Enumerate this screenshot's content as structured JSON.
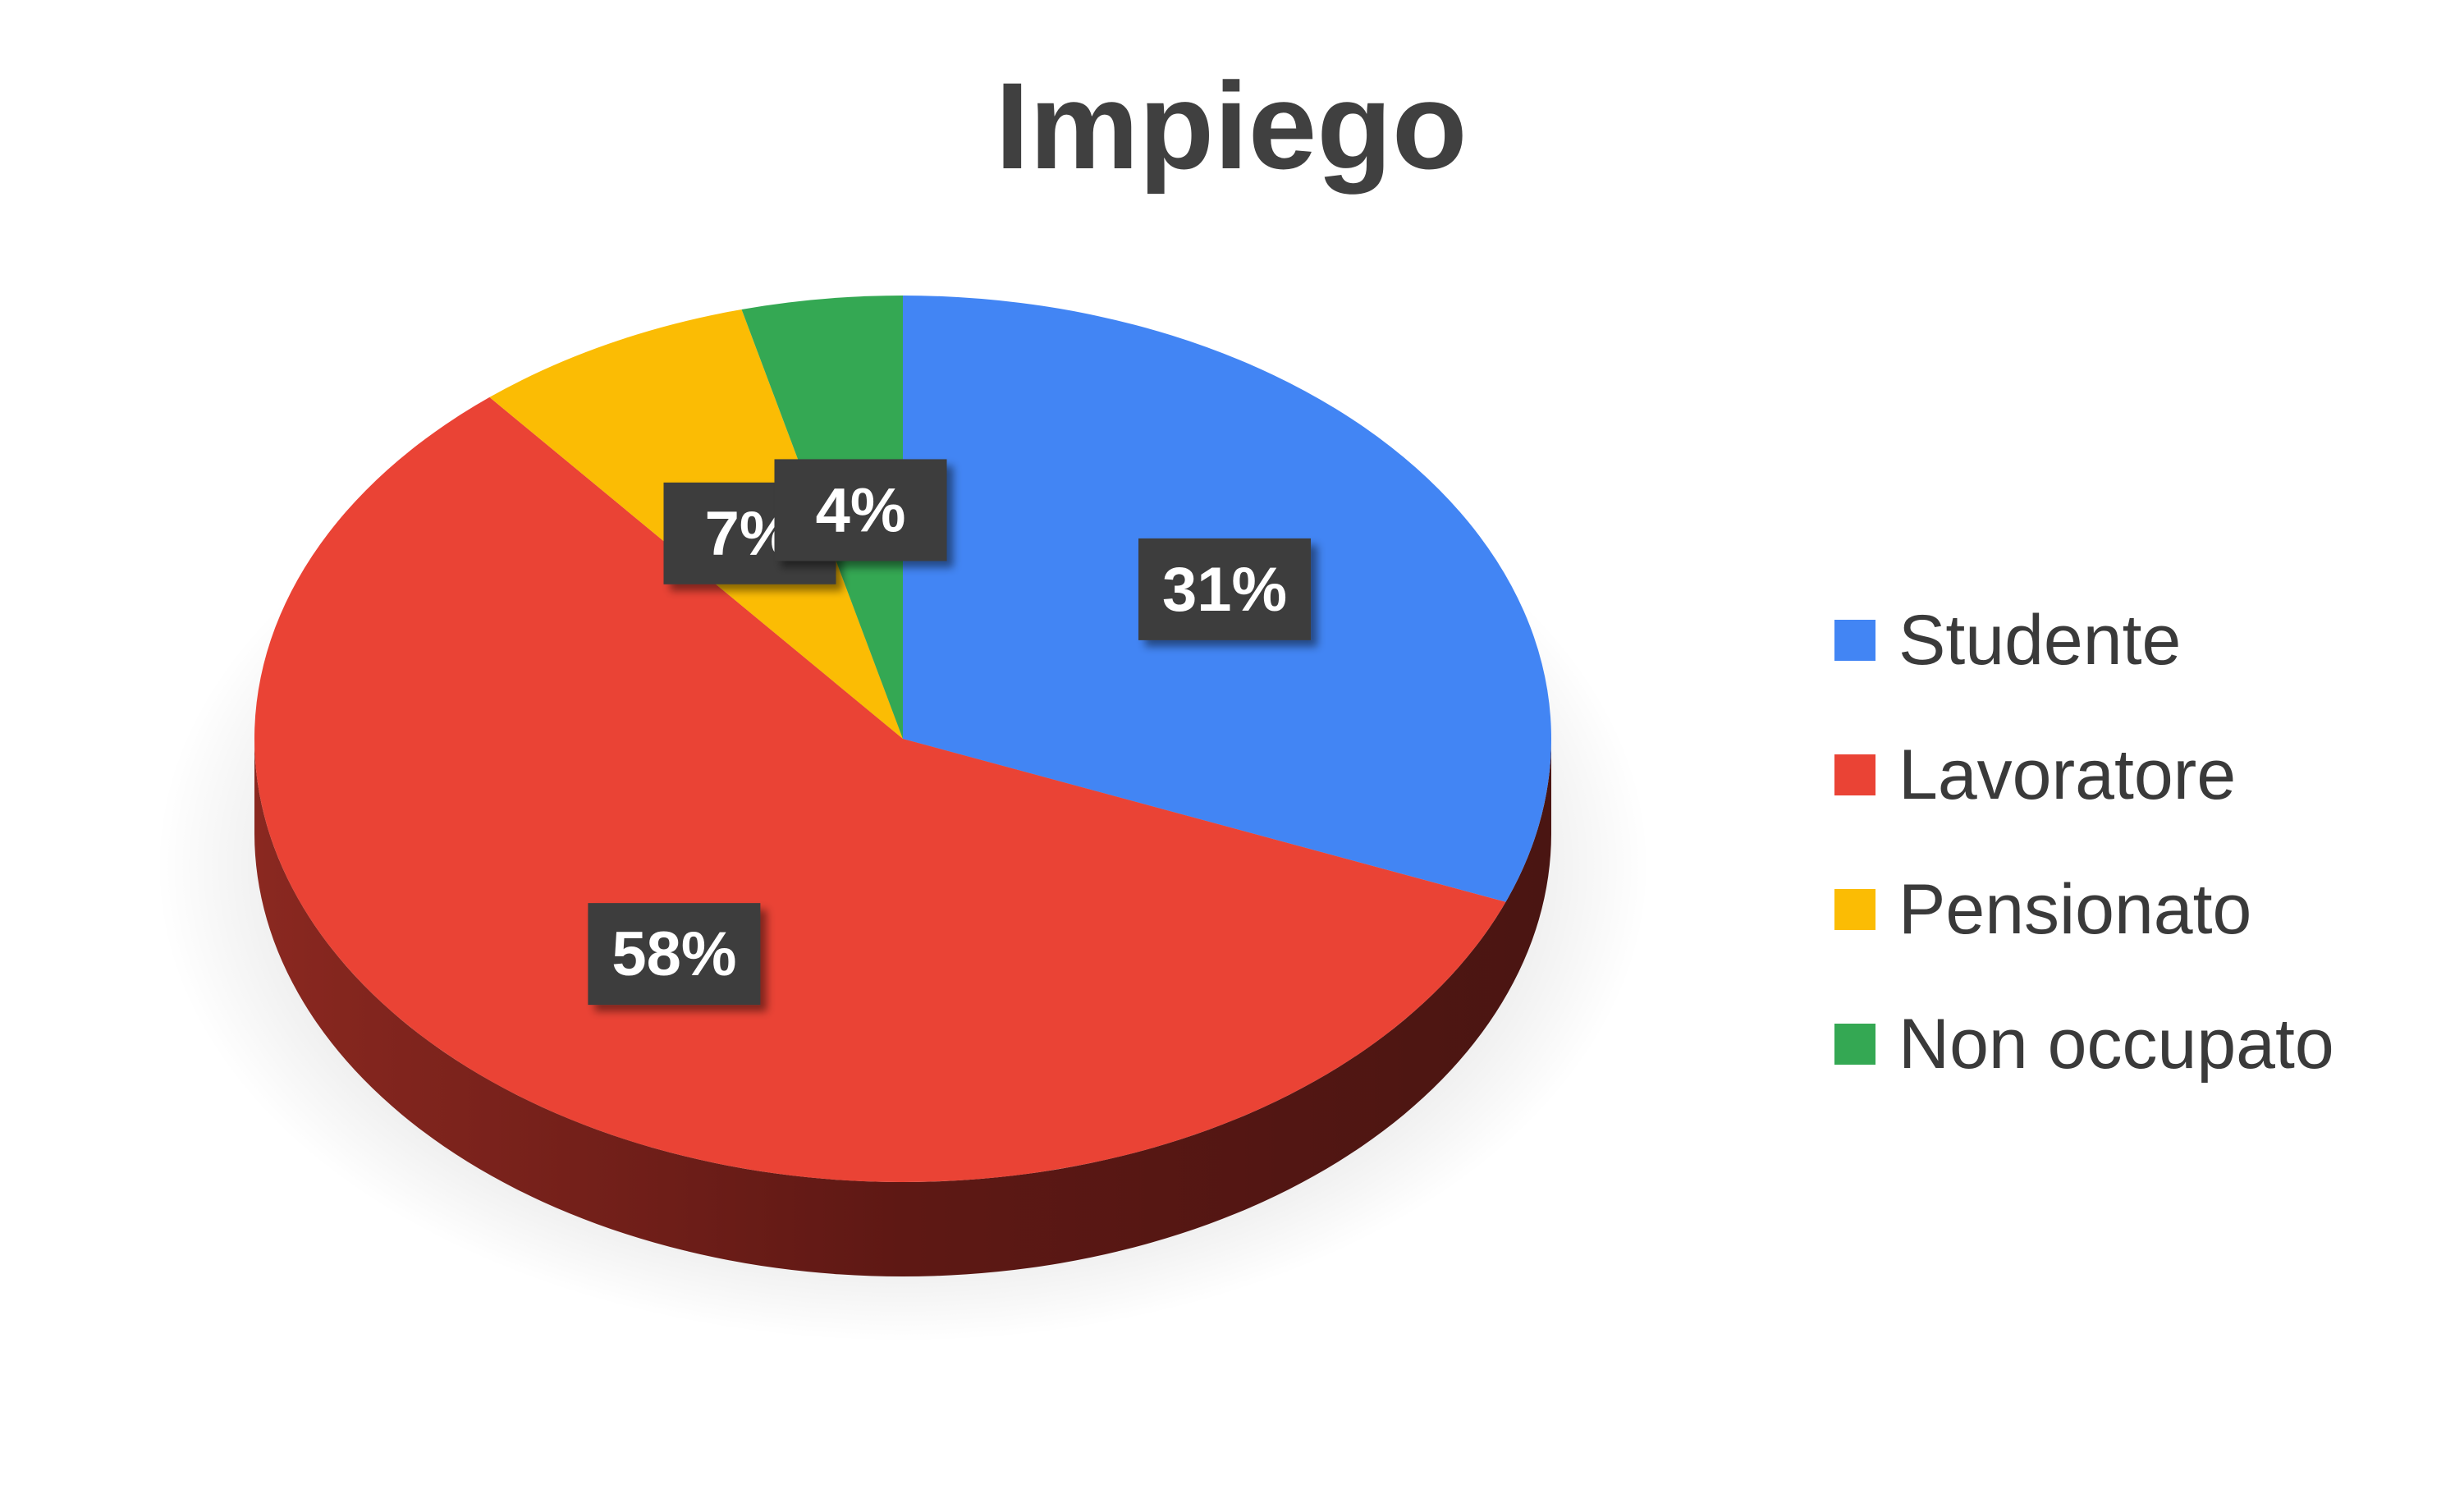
{
  "chart_data": {
    "type": "pie",
    "title": "Impiego",
    "is_3d": true,
    "categories": [
      "Studente",
      "Lavoratore",
      "Pensionato",
      "Non occupato"
    ],
    "values": [
      31,
      58,
      7,
      4
    ],
    "labels": [
      "31%",
      "58%",
      "7%",
      "4%"
    ],
    "colors": [
      "#4285F4",
      "#EA4335",
      "#FBBC04",
      "#34A853"
    ],
    "legend_position": "right"
  }
}
